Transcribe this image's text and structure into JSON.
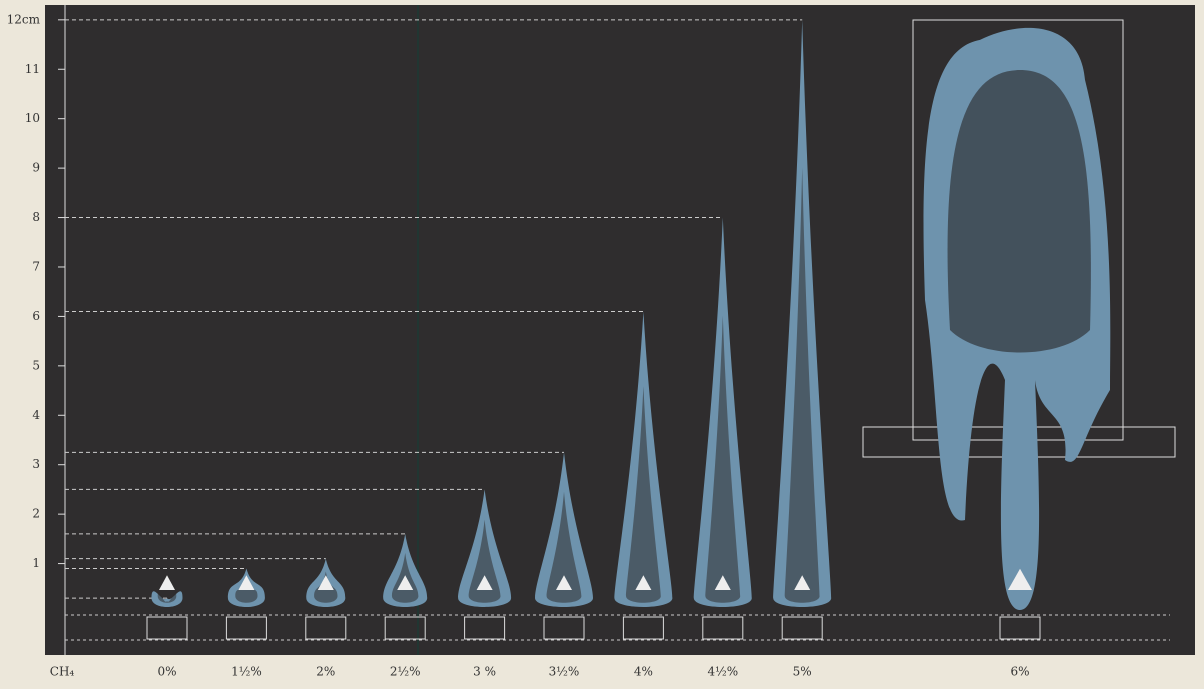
{
  "chart_data": {
    "type": "flame",
    "axis_label": "CH₄",
    "categories": [
      "0%",
      "1½%",
      "2%",
      "2½%",
      "3 %",
      "3½%",
      "4%",
      "4½%",
      "5%",
      "6%"
    ],
    "values": [
      0.3,
      0.9,
      1.1,
      1.6,
      2.5,
      3.25,
      6.1,
      8,
      12,
      12
    ],
    "color": "#6e93ad",
    "ylim": [
      0,
      12.3
    ],
    "yticks": [
      1,
      2,
      3,
      4,
      5,
      6,
      7,
      8,
      9,
      10,
      11,
      {
        "value": 12,
        "label": "12cm"
      }
    ]
  }
}
